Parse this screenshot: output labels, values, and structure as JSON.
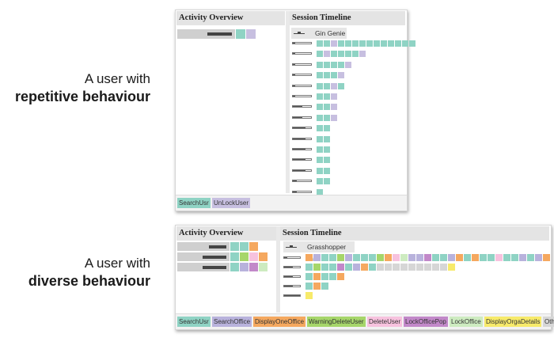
{
  "colors": {
    "SearchUsr": "#8fd3c4",
    "UnLockUser": "#c7bfe0",
    "SearchOffice": "#b8b2dc",
    "DisplayOneOffice": "#f5a85f",
    "WarningDeleteUser": "#a6d66a",
    "DeleteUser": "#f7c2de",
    "LockOfficePop": "#c288c9",
    "LockOffice": "#cdebc0",
    "DisplayOrgaDetails": "#f7ea6a",
    "Others": "#d6d6d6",
    "bar_dark": "#555555"
  },
  "captions": {
    "top": {
      "line1": "A user with",
      "line2": "repetitive behaviour"
    },
    "bottom": {
      "line1": "A user with",
      "line2": "diverse behaviour"
    }
  },
  "panel_top": {
    "activity_title": "Activity Overview",
    "session_title": "Session Timeline",
    "session_name": "Gin Genie",
    "legend": [
      "SearchUsr",
      "UnLockUser"
    ],
    "overview_rows": [
      {
        "level": 0.7,
        "cells": [
          "SearchUsr",
          "UnLockUser"
        ]
      }
    ],
    "timeline_rows": [
      {
        "level": 0.15,
        "cells": [
          "SearchUsr",
          "SearchUsr",
          "UnLockUser",
          "SearchUsr",
          "SearchUsr",
          "SearchUsr",
          "SearchUsr",
          "SearchUsr",
          "SearchUsr",
          "SearchUsr",
          "SearchUsr",
          "SearchUsr",
          "SearchUsr",
          "SearchUsr"
        ]
      },
      {
        "level": 0.15,
        "cells": [
          "SearchUsr",
          "UnLockUser",
          "SearchUsr",
          "SearchUsr",
          "SearchUsr",
          "SearchUsr",
          "UnLockUser"
        ]
      },
      {
        "level": 0.15,
        "cells": [
          "SearchUsr",
          "SearchUsr",
          "SearchUsr",
          "SearchUsr",
          "UnLockUser"
        ]
      },
      {
        "level": 0.15,
        "cells": [
          "SearchUsr",
          "SearchUsr",
          "SearchUsr",
          "UnLockUser"
        ]
      },
      {
        "level": 0.15,
        "cells": [
          "SearchUsr",
          "SearchUsr",
          "UnLockUser",
          "SearchUsr"
        ]
      },
      {
        "level": 0.15,
        "cells": [
          "SearchUsr",
          "SearchUsr",
          "UnLockUser"
        ]
      },
      {
        "level": 0.5,
        "cells": [
          "SearchUsr",
          "SearchUsr",
          "UnLockUser"
        ]
      },
      {
        "level": 0.5,
        "cells": [
          "SearchUsr",
          "SearchUsr",
          "UnLockUser"
        ]
      },
      {
        "level": 0.7,
        "cells": [
          "SearchUsr",
          "SearchUsr"
        ]
      },
      {
        "level": 0.7,
        "cells": [
          "SearchUsr",
          "SearchUsr"
        ]
      },
      {
        "level": 0.7,
        "cells": [
          "SearchUsr",
          "SearchUsr"
        ]
      },
      {
        "level": 0.7,
        "cells": [
          "SearchUsr",
          "SearchUsr"
        ]
      },
      {
        "level": 0.7,
        "cells": [
          "SearchUsr",
          "SearchUsr"
        ]
      },
      {
        "level": 0.2,
        "cells": [
          "SearchUsr",
          "SearchUsr"
        ]
      },
      {
        "level": 0.2,
        "cells": [
          "SearchUsr"
        ]
      }
    ]
  },
  "panel_bottom": {
    "activity_title": "Activity Overview",
    "session_title": "Session Timeline",
    "session_name": "Grasshopper I&II",
    "legend": [
      "SearchUsr",
      "SearchOffice",
      "DisplayOneOffice",
      "WarningDeleteUser",
      "DeleteUser",
      "LockOfficePop",
      "LockOffice",
      "DisplayOrgaDetails",
      "Others"
    ],
    "legend_text": [
      "SearchUsr",
      "SearchOffice",
      "DisplayOneOffice",
      "WarningDeleteUser",
      "DeleteUser",
      "LockOfficePop",
      "LockOffice",
      "DisplayOrgaDetails",
      "Others"
    ],
    "overview_rows": [
      {
        "level": 0.55,
        "cells": [
          "SearchUsr",
          "SearchUsr",
          "DisplayOneOffice"
        ]
      },
      {
        "level": 0.75,
        "cells": [
          "SearchUsr",
          "WarningDeleteUser",
          "DeleteUser",
          "DisplayOneOffice"
        ]
      },
      {
        "level": 0.75,
        "cells": [
          "SearchUsr",
          "SearchOffice",
          "LockOfficePop",
          "LockOffice"
        ]
      }
    ],
    "timeline_rows": [
      {
        "level": 0.2,
        "cells": [
          "DisplayOneOffice",
          "SearchOffice",
          "SearchUsr",
          "SearchUsr",
          "WarningDeleteUser",
          "SearchOffice",
          "SearchUsr",
          "SearchUsr",
          "SearchUsr",
          "WarningDeleteUser",
          "DisplayOneOffice",
          "DeleteUser",
          "LockOffice",
          "SearchOffice",
          "SearchOffice",
          "LockOfficePop",
          "SearchUsr",
          "SearchUsr",
          "SearchOffice",
          "DisplayOneOffice",
          "SearchUsr",
          "DisplayOneOffice",
          "SearchUsr",
          "SearchUsr",
          "DeleteUser",
          "SearchUsr",
          "SearchUsr",
          "SearchOffice",
          "SearchUsr",
          "SearchOffice",
          "DisplayOneOffice"
        ]
      },
      {
        "level": 0.55,
        "cells": [
          "SearchUsr",
          "WarningDeleteUser",
          "SearchUsr",
          "SearchUsr",
          "LockOfficePop",
          "SearchUsr",
          "SearchOffice",
          "DisplayOneOffice",
          "SearchUsr",
          "Others",
          "Others",
          "Others",
          "Others",
          "Others",
          "Others",
          "Others",
          "Others",
          "Others",
          "DisplayOrgaDetails"
        ]
      },
      {
        "level": 0.55,
        "cells": [
          "SearchUsr",
          "DisplayOneOffice",
          "SearchUsr",
          "SearchUsr",
          "DisplayOneOffice"
        ]
      },
      {
        "level": 0.55,
        "cells": [
          "SearchUsr",
          "DisplayOneOffice",
          "SearchUsr"
        ]
      },
      {
        "level": 1.0,
        "cells": [
          "DisplayOrgaDetails"
        ]
      }
    ]
  }
}
